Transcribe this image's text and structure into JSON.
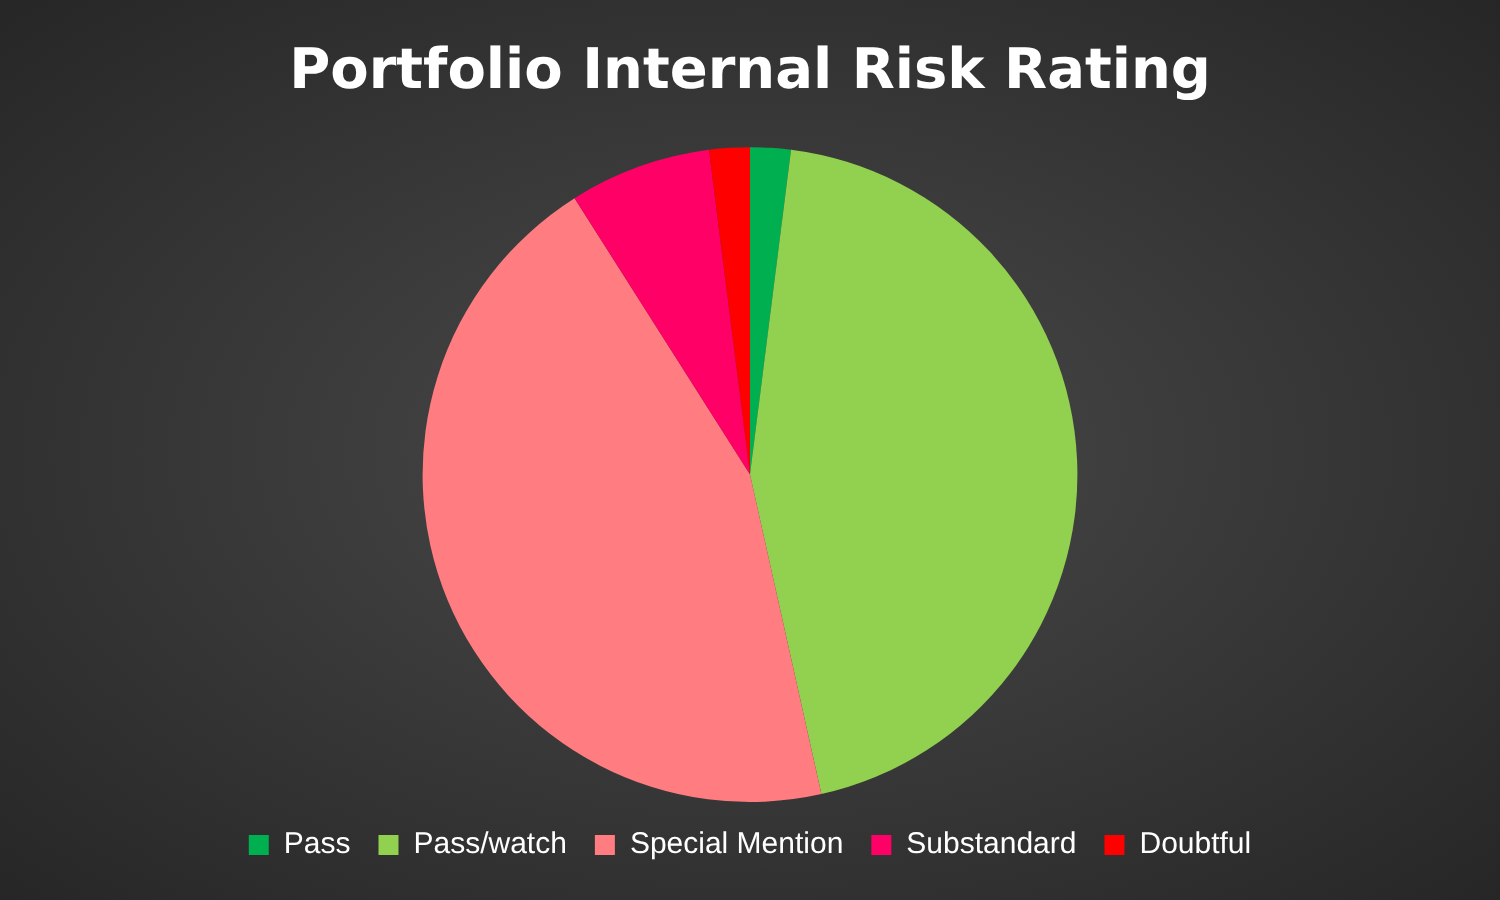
{
  "chart_data": {
    "type": "pie",
    "title": "Portfolio Internal Risk Rating",
    "categories": [
      "Pass",
      "Pass/watch",
      "Special Mention",
      "Substandard",
      "Doubtful"
    ],
    "values": [
      2,
      44.5,
      44.5,
      7,
      2
    ],
    "colors": [
      "#00b050",
      "#92d050",
      "#ff7c80",
      "#ff0066",
      "#ff0000"
    ],
    "legend": "bottom"
  }
}
